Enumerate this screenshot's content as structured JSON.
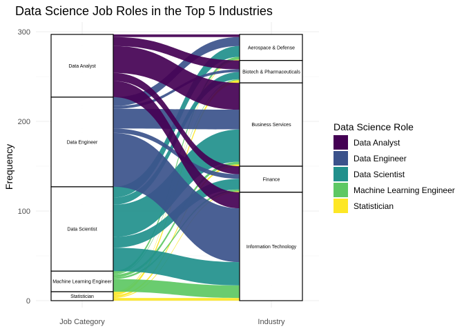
{
  "chart_data": {
    "type": "alluvial",
    "title": "Data Science Job Roles in the Top 5 Industries",
    "ylabel": "Frequency",
    "xlabel": "",
    "axes": [
      "Job Category",
      "Industry"
    ],
    "ylim": [
      0,
      300
    ],
    "yticks": [
      0,
      100,
      200,
      300
    ],
    "legend": {
      "title": "Data Science Role",
      "position": "right"
    },
    "roles": [
      {
        "name": "Data Analyst",
        "color": "#440154"
      },
      {
        "name": "Data Engineer",
        "color": "#3b528b"
      },
      {
        "name": "Data Scientist",
        "color": "#21908c"
      },
      {
        "name": "Machine Learning Engineer",
        "color": "#5dc863"
      },
      {
        "name": "Statistician",
        "color": "#fde725"
      }
    ],
    "industries": [
      "Aerospace & Defense",
      "Biotech & Pharmaceuticals",
      "Business Services",
      "Finance",
      "Information Technology"
    ],
    "flows": [
      {
        "role": "Data Analyst",
        "industry": "Aerospace & Defense",
        "value": 3
      },
      {
        "role": "Data Analyst",
        "industry": "Biotech & Pharmaceuticals",
        "value": 10
      },
      {
        "role": "Data Analyst",
        "industry": "Business Services",
        "value": 30
      },
      {
        "role": "Data Analyst",
        "industry": "Finance",
        "value": 9
      },
      {
        "role": "Data Analyst",
        "industry": "Information Technology",
        "value": 18
      },
      {
        "role": "Data Engineer",
        "industry": "Aerospace & Defense",
        "value": 10
      },
      {
        "role": "Data Engineer",
        "industry": "Biotech & Pharmaceuticals",
        "value": 3
      },
      {
        "role": "Data Engineer",
        "industry": "Business Services",
        "value": 22
      },
      {
        "role": "Data Engineer",
        "industry": "Finance",
        "value": 5
      },
      {
        "role": "Data Engineer",
        "industry": "Information Technology",
        "value": 60
      },
      {
        "role": "Data Scientist",
        "industry": "Aerospace & Defense",
        "value": 12
      },
      {
        "role": "Data Scientist",
        "industry": "Biotech & Pharmaceuticals",
        "value": 8
      },
      {
        "role": "Data Scientist",
        "industry": "Business Services",
        "value": 36
      },
      {
        "role": "Data Scientist",
        "industry": "Finance",
        "value": 12
      },
      {
        "role": "Data Scientist",
        "industry": "Information Technology",
        "value": 26
      },
      {
        "role": "Machine Learning Engineer",
        "industry": "Aerospace & Defense",
        "value": 3
      },
      {
        "role": "Machine Learning Engineer",
        "industry": "Biotech & Pharmaceuticals",
        "value": 1
      },
      {
        "role": "Machine Learning Engineer",
        "industry": "Business Services",
        "value": 3
      },
      {
        "role": "Machine Learning Engineer",
        "industry": "Finance",
        "value": 2
      },
      {
        "role": "Machine Learning Engineer",
        "industry": "Information Technology",
        "value": 14
      },
      {
        "role": "Statistician",
        "industry": "Aerospace & Defense",
        "value": 1
      },
      {
        "role": "Statistician",
        "industry": "Biotech & Pharmaceuticals",
        "value": 3
      },
      {
        "role": "Statistician",
        "industry": "Business Services",
        "value": 2
      },
      {
        "role": "Statistician",
        "industry": "Finance",
        "value": 1
      },
      {
        "role": "Statistician",
        "industry": "Information Technology",
        "value": 3
      }
    ]
  }
}
